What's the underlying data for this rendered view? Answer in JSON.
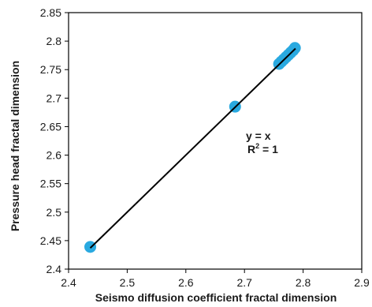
{
  "chart_data": {
    "type": "scatter",
    "xlabel": "Seismo diffusion coefficient fractal dimension",
    "ylabel": "Pressure head fractal dimension",
    "xlim": [
      2.4,
      2.9
    ],
    "ylim": [
      2.4,
      2.85
    ],
    "x_ticks": [
      2.4,
      2.5,
      2.6,
      2.7,
      2.8,
      2.9
    ],
    "y_ticks": [
      2.4,
      2.45,
      2.5,
      2.55,
      2.6,
      2.65,
      2.7,
      2.75,
      2.8,
      2.85
    ],
    "x_tick_labels": [
      "2.4",
      "2.5",
      "2.6",
      "2.7",
      "2.8",
      "2.9"
    ],
    "y_tick_labels": [
      "2.4",
      "2.45",
      "2.5",
      "2.55",
      "2.6",
      "2.65",
      "2.7",
      "2.75",
      "2.8",
      "2.85"
    ],
    "grid": false,
    "points": [
      {
        "x": 2.437,
        "y": 2.439
      },
      {
        "x": 2.684,
        "y": 2.685
      },
      {
        "x": 2.759,
        "y": 2.76
      },
      {
        "x": 2.763,
        "y": 2.764
      },
      {
        "x": 2.767,
        "y": 2.768
      },
      {
        "x": 2.771,
        "y": 2.772
      },
      {
        "x": 2.775,
        "y": 2.776
      },
      {
        "x": 2.779,
        "y": 2.78
      },
      {
        "x": 2.783,
        "y": 2.784
      },
      {
        "x": 2.786,
        "y": 2.788
      }
    ],
    "trendline": {
      "x": [
        2.437,
        2.787
      ],
      "y": [
        2.437,
        2.787
      ]
    },
    "equation": "y = x",
    "r2_label": "R",
    "r2_sup": "2",
    "r2_value": " = 1",
    "marker_color": "#29a9e0",
    "line_color": "#000000"
  }
}
